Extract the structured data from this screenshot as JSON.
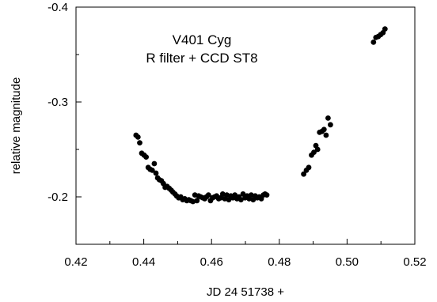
{
  "chart_data": {
    "type": "scatter",
    "title": "",
    "xlabel": "JD 24 51738 +",
    "ylabel": "relative magnitude",
    "xlim": [
      0.42,
      0.52
    ],
    "ylim": [
      -0.15,
      -0.4
    ],
    "y_axis_inverted": true,
    "grid": false,
    "x_ticks": [
      {
        "value": 0.42,
        "label": "0.42"
      },
      {
        "value": 0.44,
        "label": "0.44"
      },
      {
        "value": 0.46,
        "label": "0.46"
      },
      {
        "value": 0.48,
        "label": "0.48"
      },
      {
        "value": 0.5,
        "label": "0.50"
      },
      {
        "value": 0.52,
        "label": "0.52"
      }
    ],
    "y_ticks": [
      {
        "value": -0.4,
        "label": "-0.4"
      },
      {
        "value": -0.3,
        "label": "-0.3"
      },
      {
        "value": -0.2,
        "label": "-0.2"
      }
    ],
    "annotations": [
      "V401 Cyg",
      "R filter + CCD ST8"
    ],
    "series": [
      {
        "points": [
          [
            0.4377,
            -0.265
          ],
          [
            0.4383,
            -0.263
          ],
          [
            0.4388,
            -0.257
          ],
          [
            0.4394,
            -0.246
          ],
          [
            0.4401,
            -0.244
          ],
          [
            0.4407,
            -0.242
          ],
          [
            0.4413,
            -0.231
          ],
          [
            0.4419,
            -0.229
          ],
          [
            0.4425,
            -0.228
          ],
          [
            0.4431,
            -0.235
          ],
          [
            0.4436,
            -0.225
          ],
          [
            0.4441,
            -0.22
          ],
          [
            0.4446,
            -0.218
          ],
          [
            0.4452,
            -0.217
          ],
          [
            0.4458,
            -0.214
          ],
          [
            0.4463,
            -0.21
          ],
          [
            0.4469,
            -0.211
          ],
          [
            0.4475,
            -0.209
          ],
          [
            0.4481,
            -0.207
          ],
          [
            0.4486,
            -0.205
          ],
          [
            0.4492,
            -0.203
          ],
          [
            0.4497,
            -0.201
          ],
          [
            0.4503,
            -0.199
          ],
          [
            0.4509,
            -0.2
          ],
          [
            0.4515,
            -0.197
          ],
          [
            0.4521,
            -0.198
          ],
          [
            0.4527,
            -0.196
          ],
          [
            0.4533,
            -0.197
          ],
          [
            0.4539,
            -0.196
          ],
          [
            0.4545,
            -0.195
          ],
          [
            0.4551,
            -0.202
          ],
          [
            0.4557,
            -0.196
          ],
          [
            0.4562,
            -0.201
          ],
          [
            0.4568,
            -0.2
          ],
          [
            0.4574,
            -0.199
          ],
          [
            0.458,
            -0.198
          ],
          [
            0.4585,
            -0.2
          ],
          [
            0.4591,
            -0.202
          ],
          [
            0.4597,
            -0.196
          ],
          [
            0.4603,
            -0.199
          ],
          [
            0.4609,
            -0.2
          ],
          [
            0.4615,
            -0.201
          ],
          [
            0.4621,
            -0.198
          ],
          [
            0.4627,
            -0.199
          ],
          [
            0.4633,
            -0.203
          ],
          [
            0.4639,
            -0.198
          ],
          [
            0.4645,
            -0.202
          ],
          [
            0.4651,
            -0.197
          ],
          [
            0.4657,
            -0.201
          ],
          [
            0.4663,
            -0.199
          ],
          [
            0.4669,
            -0.202
          ],
          [
            0.4675,
            -0.198
          ],
          [
            0.4681,
            -0.2
          ],
          [
            0.4687,
            -0.197
          ],
          [
            0.4693,
            -0.203
          ],
          [
            0.4699,
            -0.199
          ],
          [
            0.4705,
            -0.201
          ],
          [
            0.4711,
            -0.198
          ],
          [
            0.4717,
            -0.202
          ],
          [
            0.4723,
            -0.197
          ],
          [
            0.4729,
            -0.201
          ],
          [
            0.4735,
            -0.199
          ],
          [
            0.4741,
            -0.2
          ],
          [
            0.4747,
            -0.198
          ],
          [
            0.4753,
            -0.202
          ],
          [
            0.4758,
            -0.203
          ],
          [
            0.4763,
            -0.202
          ],
          [
            0.4872,
            -0.224
          ],
          [
            0.488,
            -0.228
          ],
          [
            0.4887,
            -0.231
          ],
          [
            0.4895,
            -0.244
          ],
          [
            0.4902,
            -0.247
          ],
          [
            0.4908,
            -0.254
          ],
          [
            0.4913,
            -0.25
          ],
          [
            0.4919,
            -0.268
          ],
          [
            0.4926,
            -0.269
          ],
          [
            0.4932,
            -0.271
          ],
          [
            0.4938,
            -0.265
          ],
          [
            0.4944,
            -0.283
          ],
          [
            0.4951,
            -0.276
          ],
          [
            0.5078,
            -0.363
          ],
          [
            0.5085,
            -0.368
          ],
          [
            0.5092,
            -0.369
          ],
          [
            0.5099,
            -0.371
          ],
          [
            0.5106,
            -0.373
          ],
          [
            0.5112,
            -0.377
          ]
        ]
      }
    ]
  }
}
